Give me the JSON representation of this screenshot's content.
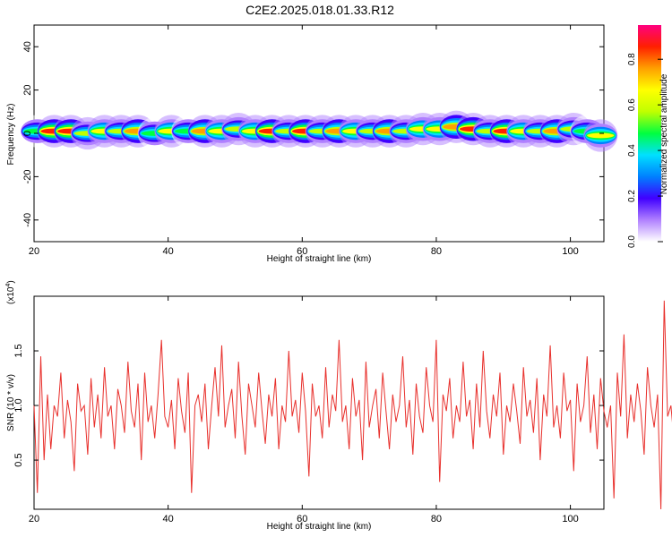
{
  "title": "C2E2.2025.018.01.33.R12",
  "chart_data": [
    {
      "type": "heatmap",
      "xlabel": "Height of straight line (km)",
      "ylabel": "Frequency (Hz)",
      "xlim": [
        20,
        105
      ],
      "ylim": [
        -50,
        50
      ],
      "xticks": [
        20,
        40,
        60,
        80,
        100
      ],
      "xtick_labels": [
        "20",
        "40",
        "60",
        "80",
        "100"
      ],
      "yticks": [
        40,
        20,
        0,
        -20,
        -40
      ],
      "ytick_labels": [
        "40",
        "20",
        "0",
        "-20",
        "-40"
      ],
      "colorbar": {
        "label": "Normalized spectral amplitude",
        "range": [
          0,
          0.95
        ],
        "ticks": [
          0.0,
          0.2,
          0.4,
          0.6,
          0.8
        ],
        "tick_labels": [
          "0.0",
          "0.2",
          "0.4",
          "0.6",
          "0.8"
        ],
        "colors": [
          "#ffffff",
          "#b080ff",
          "#4000ff",
          "#0080ff",
          "#00e0ff",
          "#00ff40",
          "#c0ff00",
          "#ffff00",
          "#ffa000",
          "#ff2000",
          "#ff0080"
        ]
      },
      "band": {
        "center_hz": [
          1,
          1,
          1,
          0,
          1,
          1,
          1,
          0,
          1,
          1,
          1,
          1,
          2,
          1,
          1,
          1,
          1,
          1,
          1,
          1,
          1,
          1,
          1,
          2,
          2,
          3,
          2,
          1,
          1,
          1,
          1,
          1,
          2,
          1,
          -1
        ],
        "x_km": [
          20.5,
          23,
          25.5,
          28,
          30.5,
          33,
          35.5,
          38,
          40.5,
          43,
          45.5,
          48,
          50.5,
          53,
          55.5,
          58,
          60.5,
          63,
          65.5,
          68,
          70.5,
          73,
          75.5,
          78,
          80.5,
          83,
          85.5,
          88,
          90.5,
          93,
          95.5,
          98,
          100.5,
          102.5,
          104.5
        ],
        "peak_amplitude": [
          0.5,
          0.9,
          0.9,
          0.6,
          0.7,
          0.6,
          0.8,
          0.5,
          0.7,
          0.5,
          0.8,
          0.7,
          0.6,
          0.7,
          0.9,
          0.6,
          0.9,
          0.6,
          0.8,
          0.7,
          0.6,
          0.8,
          0.6,
          0.7,
          0.7,
          0.8,
          0.9,
          0.6,
          0.9,
          0.7,
          0.6,
          0.8,
          0.6,
          0.5,
          0.7
        ]
      },
      "grid": false
    },
    {
      "type": "line",
      "xlabel": "Height of straight line (km)",
      "ylabel": "SNR (10 * v/v)",
      "y_multiplier": "(x10",
      "y_multiplier_exp": "4",
      "y_multiplier_close": ")",
      "xlim": [
        20,
        105
      ],
      "ylim": [
        0.05,
        2.0
      ],
      "xticks": [
        20,
        40,
        60,
        80,
        100
      ],
      "xtick_labels": [
        "20",
        "40",
        "60",
        "80",
        "100"
      ],
      "yticks": [
        0.5,
        1.0,
        1.5
      ],
      "ytick_labels": [
        "0.5",
        "1.0",
        "1.5"
      ],
      "series": [
        {
          "color": "#e8302c",
          "x_start": 20,
          "x_step": 0.5,
          "values": [
            1.0,
            0.2,
            1.45,
            0.5,
            1.1,
            0.6,
            1.0,
            0.9,
            1.3,
            0.7,
            1.05,
            0.85,
            0.4,
            1.2,
            0.95,
            1.0,
            0.55,
            1.25,
            0.8,
            1.1,
            0.7,
            1.35,
            0.9,
            1.0,
            0.6,
            1.15,
            1.0,
            0.75,
            1.4,
            0.95,
            0.8,
            1.2,
            0.5,
            1.3,
            0.85,
            1.0,
            0.7,
            1.1,
            1.6,
            0.9,
            0.8,
            1.05,
            0.6,
            1.25,
            0.95,
            0.75,
            1.3,
            0.2,
            1.0,
            1.1,
            0.85,
            1.2,
            0.6,
            1.0,
            1.35,
            0.9,
            1.55,
            0.8,
            1.0,
            1.15,
            0.7,
            1.4,
            0.9,
            0.55,
            1.2,
            1.0,
            0.8,
            1.3,
            0.95,
            0.65,
            1.1,
            0.9,
            1.25,
            0.6,
            1.0,
            0.85,
            1.5,
            0.9,
            1.05,
            0.75,
            1.3,
            0.95,
            0.35,
            1.2,
            0.9,
            1.0,
            0.7,
            1.35,
            0.8,
            1.1,
            0.95,
            1.6,
            0.85,
            1.0,
            0.6,
            1.25,
            0.9,
            1.05,
            0.5,
            1.4,
            0.8,
            1.0,
            1.15,
            0.7,
            1.3,
            0.95,
            0.6,
            1.1,
            0.85,
            1.0,
            1.45,
            0.8,
            1.05,
            0.55,
            1.2,
            0.9,
            0.75,
            1.35,
            1.0,
            0.85,
            1.6,
            0.3,
            1.1,
            0.95,
            1.25,
            0.7,
            1.0,
            0.85,
            1.4,
            0.9,
            1.05,
            0.6,
            1.2,
            0.8,
            1.5,
            0.95,
            0.7,
            1.1,
            0.9,
            1.3,
            0.55,
            1.0,
            0.85,
            1.2,
            0.95,
            0.65,
            1.35,
            0.9,
            1.05,
            0.75,
            1.25,
            0.5,
            1.1,
            0.9,
            1.55,
            0.8,
            1.0,
            0.7,
            1.3,
            0.95,
            1.05,
            0.4,
            1.2,
            0.85,
            1.0,
            1.45,
            0.75,
            1.1,
            0.6,
            1.25,
            0.95,
            0.8,
            1.0,
            0.15,
            1.3,
            0.9,
            1.65,
            0.7,
            1.1,
            0.85,
            1.2,
            0.95,
            0.55,
            1.35,
            1.0,
            0.8,
            1.1,
            0.05,
            1.96,
            0.9,
            1.0,
            0.65,
            1.25,
            0.85,
            1.4,
            0.95,
            0.6,
            1.7,
            0.3,
            1.2,
            0.9,
            1.45,
            0.4
          ]
        }
      ],
      "grid": false
    }
  ]
}
